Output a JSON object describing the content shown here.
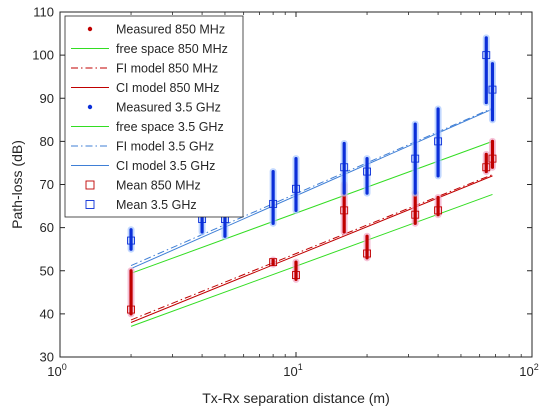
{
  "chart_data": {
    "type": "scatter",
    "title": "",
    "xlabel": "Tx-Rx separation distance (m)",
    "ylabel": "Path-loss (dB)",
    "xscale": "log",
    "xlim": [
      1,
      100
    ],
    "ylim": [
      30,
      110
    ],
    "x_ticks": [
      1,
      10,
      100
    ],
    "x_tick_labels": [
      {
        "base": "10",
        "exp": "0"
      },
      {
        "base": "10",
        "exp": "1"
      },
      {
        "base": "10",
        "exp": "2"
      }
    ],
    "y_ticks": [
      30,
      40,
      50,
      60,
      70,
      80,
      90,
      100,
      110
    ],
    "y_tick_labels": [
      "30",
      "40",
      "50",
      "60",
      "70",
      "80",
      "90",
      "100",
      "110"
    ],
    "grid": false,
    "legend_position": "top-left",
    "colors": {
      "red": "#c00000",
      "green": "#33dd22",
      "blue": "#0b2fd9",
      "blue_line": "#3f7fd6",
      "pink": "#f2a7c7",
      "lightblue": "#a9c8ff",
      "axis": "#262626"
    },
    "series": [
      {
        "name": "Measured 850 MHz",
        "kind": "measured",
        "color": "#c00000",
        "bands": [
          {
            "x": 2,
            "y0": 40,
            "y1": 50
          },
          {
            "x": 8,
            "y0": 51.5,
            "y1": 52.5
          },
          {
            "x": 10,
            "y0": 48,
            "y1": 52
          },
          {
            "x": 16,
            "y0": 59,
            "y1": 70
          },
          {
            "x": 20,
            "y0": 53,
            "y1": 58
          },
          {
            "x": 32,
            "y0": 61,
            "y1": 68
          },
          {
            "x": 40,
            "y0": 63,
            "y1": 67
          },
          {
            "x": 64,
            "y0": 73,
            "y1": 77
          },
          {
            "x": 68,
            "y0": 74,
            "y1": 80
          }
        ]
      },
      {
        "name": "free space 850 MHz",
        "kind": "line",
        "color": "#33dd22",
        "dash": "solid",
        "x": [
          2,
          68
        ],
        "y": [
          37.1,
          67.7
        ]
      },
      {
        "name": "FI model 850 MHz",
        "kind": "line",
        "color": "#c00000",
        "dash": "dashdot",
        "x": [
          2,
          68
        ],
        "y": [
          38.6,
          72.3
        ]
      },
      {
        "name": "CI model 850 MHz",
        "kind": "line",
        "color": "#c00000",
        "dash": "solid",
        "x": [
          2,
          68
        ],
        "y": [
          38.0,
          72.0
        ]
      },
      {
        "name": "Measured 3.5 GHz",
        "kind": "measured",
        "color": "#0b2fd9",
        "bands": [
          {
            "x": 2,
            "y0": 55,
            "y1": 59.5
          },
          {
            "x": 4,
            "y0": 59,
            "y1": 64
          },
          {
            "x": 5,
            "y0": 58,
            "y1": 65
          },
          {
            "x": 8,
            "y0": 61,
            "y1": 73
          },
          {
            "x": 10,
            "y0": 64,
            "y1": 76
          },
          {
            "x": 16,
            "y0": 68,
            "y1": 79.5
          },
          {
            "x": 20,
            "y0": 68,
            "y1": 76
          },
          {
            "x": 32,
            "y0": 68,
            "y1": 84
          },
          {
            "x": 40,
            "y0": 72,
            "y1": 87.5
          },
          {
            "x": 64,
            "y0": 89,
            "y1": 104
          },
          {
            "x": 68,
            "y0": 85,
            "y1": 98
          }
        ]
      },
      {
        "name": "free space 3.5 GHz",
        "kind": "line",
        "color": "#33dd22",
        "dash": "solid",
        "x": [
          2,
          68
        ],
        "y": [
          49.4,
          80.0
        ]
      },
      {
        "name": "FI model 3.5 GHz",
        "kind": "line",
        "color": "#3f7fd6",
        "dash": "dashdot",
        "x": [
          2,
          68
        ],
        "y": [
          51.2,
          87.7
        ]
      },
      {
        "name": "CI model 3.5 GHz",
        "kind": "line",
        "color": "#3f7fd6",
        "dash": "solid",
        "x": [
          2,
          68
        ],
        "y": [
          50.5,
          87.5
        ]
      },
      {
        "name": "Mean 850 MHz",
        "kind": "mean",
        "color": "#c00000",
        "points": [
          [
            2,
            41
          ],
          [
            8,
            52
          ],
          [
            10,
            49
          ],
          [
            16,
            64
          ],
          [
            20,
            54
          ],
          [
            32,
            63
          ],
          [
            40,
            64
          ],
          [
            64,
            74
          ],
          [
            68,
            76
          ]
        ]
      },
      {
        "name": "Mean 3.5 GHz",
        "kind": "mean",
        "color": "#0b2fd9",
        "points": [
          [
            2,
            57
          ],
          [
            4,
            62
          ],
          [
            5,
            62
          ],
          [
            8,
            65.5
          ],
          [
            10,
            69
          ],
          [
            16,
            74
          ],
          [
            20,
            73
          ],
          [
            32,
            76
          ],
          [
            40,
            80
          ],
          [
            64,
            100
          ],
          [
            68,
            92
          ]
        ]
      }
    ]
  }
}
